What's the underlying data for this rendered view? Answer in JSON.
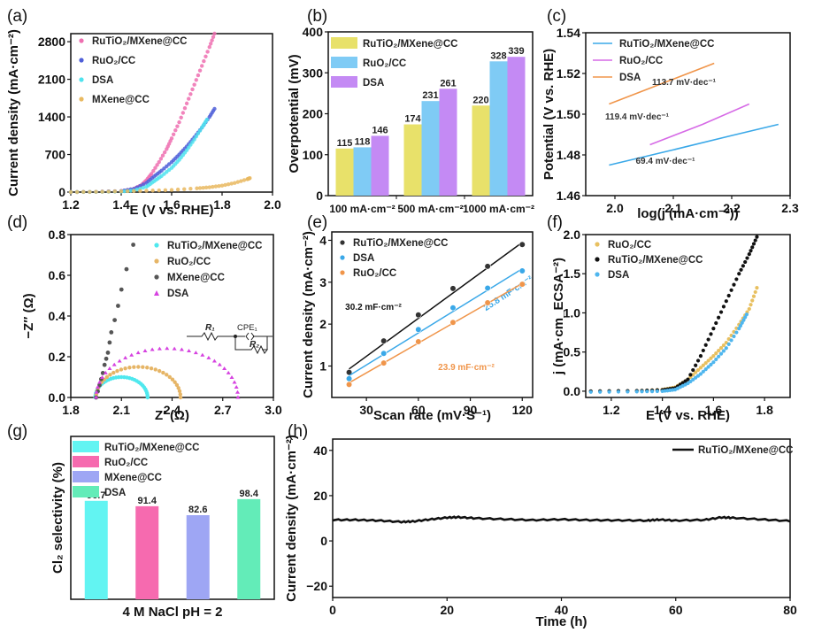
{
  "chart_data": [
    {
      "id": "a",
      "panel_label": "(a)",
      "type": "scatter",
      "xlabel": "E (V vs. RHE)",
      "ylabel": "Current density (mA·cm⁻²)",
      "xlim": [
        1.2,
        2.0
      ],
      "ylim": [
        0,
        2800
      ],
      "xticks": [
        "1.2",
        "1.4",
        "1.6",
        "1.8",
        "2.0"
      ],
      "yticks": [
        "0",
        "700",
        "1400",
        "2100",
        "2800"
      ],
      "legend": "top-left",
      "series": [
        {
          "name": "RuTiO₂/MXene@CC",
          "color": "#ee6fb0",
          "x": [
            1.2,
            1.3,
            1.4,
            1.45,
            1.48,
            1.5,
            1.52,
            1.55,
            1.58,
            1.6,
            1.63,
            1.66,
            1.69,
            1.72,
            1.75,
            1.77
          ],
          "y": [
            0,
            5,
            20,
            60,
            130,
            220,
            340,
            560,
            800,
            1000,
            1300,
            1650,
            2000,
            2350,
            2700,
            2950
          ]
        },
        {
          "name": "RuO₂/CC",
          "color": "#4f5fd8",
          "x": [
            1.2,
            1.3,
            1.4,
            1.45,
            1.5,
            1.53,
            1.56,
            1.6,
            1.63,
            1.66,
            1.69,
            1.72,
            1.75,
            1.77
          ],
          "y": [
            0,
            5,
            20,
            60,
            170,
            290,
            400,
            560,
            700,
            850,
            1020,
            1200,
            1400,
            1550
          ]
        },
        {
          "name": "DSA",
          "color": "#4fe3ee",
          "x": [
            1.2,
            1.3,
            1.4,
            1.45,
            1.5,
            1.53,
            1.56,
            1.6,
            1.63,
            1.66,
            1.69,
            1.72,
            1.74
          ],
          "y": [
            0,
            3,
            10,
            30,
            100,
            200,
            300,
            450,
            600,
            780,
            980,
            1200,
            1350
          ]
        },
        {
          "name": "MXene@CC",
          "color": "#e9b960",
          "x": [
            1.2,
            1.3,
            1.4,
            1.5,
            1.6,
            1.7,
            1.75,
            1.8,
            1.85,
            1.9,
            1.91
          ],
          "y": [
            0,
            5,
            15,
            25,
            40,
            70,
            90,
            120,
            170,
            240,
            260
          ]
        }
      ]
    },
    {
      "id": "b",
      "panel_label": "(b)",
      "type": "bar",
      "ylabel": "Overpotential (mV)",
      "ylim": [
        0,
        400
      ],
      "yticks": [
        "0",
        "100",
        "200",
        "300",
        "400"
      ],
      "categories": [
        "100 mA·cm⁻²",
        "500 mA·cm⁻²",
        "1000 mA·cm⁻²"
      ],
      "legend": "top-left",
      "series": [
        {
          "name": "RuTiO₂/MXene@CC",
          "color": "#e8e16a",
          "values": [
            115,
            174,
            220
          ]
        },
        {
          "name": "RuO₂/CC",
          "color": "#7fcbf5",
          "values": [
            118,
            231,
            328
          ]
        },
        {
          "name": "DSA",
          "color": "#c48af4",
          "values": [
            146,
            261,
            339
          ]
        }
      ]
    },
    {
      "id": "c",
      "panel_label": "(c)",
      "type": "line",
      "xlabel": "log(j (mA·cm⁻²))",
      "ylabel": "Potential (V vs. RHE)",
      "xlim": [
        1.95,
        2.3
      ],
      "ylim": [
        1.46,
        1.54
      ],
      "xticks": [
        "2.0",
        "2.1",
        "2.2",
        "2.3"
      ],
      "yticks": [
        "1.46",
        "1.48",
        "1.50",
        "1.52",
        "1.54"
      ],
      "legend": "top-left",
      "series": [
        {
          "name": "RuTiO₂/MXene@CC",
          "color": "#3aa8e8",
          "x": [
            1.99,
            2.1,
            2.2,
            2.28
          ],
          "y": [
            1.475,
            1.4825,
            1.4895,
            1.495
          ],
          "annotation": "69.4 mV·dec⁻¹"
        },
        {
          "name": "RuO₂/CC",
          "color": "#d66ae6",
          "x": [
            2.06,
            2.15,
            2.23
          ],
          "y": [
            1.485,
            1.495,
            1.505
          ],
          "annotation": "119.4 mV·dec⁻¹"
        },
        {
          "name": "DSA",
          "color": "#f0954a",
          "x": [
            1.99,
            2.08,
            2.17
          ],
          "y": [
            1.505,
            1.515,
            1.525
          ],
          "annotation": "113.7 mV·dec⁻¹"
        }
      ]
    },
    {
      "id": "d",
      "panel_label": "(d)",
      "type": "scatter",
      "xlabel": "Z′ (Ω)",
      "ylabel": "−Z″ (Ω)",
      "xlim": [
        1.8,
        3.0
      ],
      "ylim": [
        0,
        0.8
      ],
      "xticks": [
        "1.8",
        "2.1",
        "2.4",
        "2.7",
        "3.0"
      ],
      "yticks": [
        "0.0",
        "0.2",
        "0.4",
        "0.6",
        "0.8"
      ],
      "legend": "top-right",
      "inset_labels": {
        "r1": "R₁",
        "cpe": "CPE₁",
        "r2": "R₂"
      },
      "series": [
        {
          "name": "RuTiO₂/MXene@CC",
          "color": "#4fe8ee",
          "center": 2.1,
          "radius": 0.155,
          "depth": 0.1
        },
        {
          "name": "RuO₂/CC",
          "color": "#e6b566",
          "center": 2.2,
          "radius": 0.25,
          "depth": 0.15
        },
        {
          "name": "MXene@CC",
          "color": "#555555",
          "x": [
            1.95,
            1.96,
            1.97,
            1.98,
            1.99,
            2.0,
            2.01,
            2.02,
            2.03,
            2.04,
            2.06,
            2.08,
            2.1,
            2.13,
            2.17
          ],
          "y": [
            0,
            0.03,
            0.06,
            0.09,
            0.12,
            0.16,
            0.19,
            0.22,
            0.27,
            0.32,
            0.38,
            0.45,
            0.53,
            0.63,
            0.75
          ]
        },
        {
          "name": "DSA",
          "color": "#d642e0",
          "center": 2.37,
          "radius": 0.42,
          "depth": 0.24
        }
      ]
    },
    {
      "id": "e",
      "panel_label": "(e)",
      "type": "scatter",
      "xlabel": "Scan rate (mV·S⁻¹)",
      "ylabel": "Current density (mA·cm⁻²)",
      "xlim": [
        10,
        126
      ],
      "ylim": [
        0.25,
        4.2
      ],
      "xticks": [
        "30",
        "60",
        "90",
        "120"
      ],
      "yticks": [
        "1",
        "2",
        "3",
        "4"
      ],
      "legend": "top-left",
      "x": [
        20,
        40,
        60,
        80,
        100,
        120
      ],
      "series": [
        {
          "name": "RuTiO₂/MXene@CC",
          "color": "#333333",
          "line_color": "#111111",
          "values": [
            0.85,
            1.6,
            2.22,
            2.85,
            3.38,
            3.9
          ],
          "fit": [
            0.93,
            3.95
          ],
          "annotation": "30.2 mF·cm⁻²"
        },
        {
          "name": "DSA",
          "color": "#3aa8e8",
          "line_color": "#3aa8e8",
          "values": [
            0.7,
            1.3,
            1.87,
            2.39,
            2.86,
            3.27
          ],
          "fit": [
            0.77,
            3.32
          ],
          "annotation": "25.8 mF·cm⁻²"
        },
        {
          "name": "RuO₂/CC",
          "color": "#f0954a",
          "line_color": "#f0954a",
          "values": [
            0.56,
            1.07,
            1.58,
            2.04,
            2.51,
            2.95
          ],
          "fit": [
            0.6,
            2.97
          ],
          "annotation": "23.9 mF·cm⁻²"
        }
      ]
    },
    {
      "id": "f",
      "panel_label": "(f)",
      "type": "scatter",
      "xlabel": "E (V vs. RHE)",
      "ylabel": "j (mA·cm_ECSA⁻²)",
      "xlim": [
        1.1,
        1.9
      ],
      "ylim": [
        -0.08,
        2.0
      ],
      "xticks": [
        "1.2",
        "1.4",
        "1.6",
        "1.8"
      ],
      "yticks": [
        "0.0",
        "0.5",
        "1.0",
        "1.5",
        "2.0"
      ],
      "legend": "top-left",
      "series": [
        {
          "name": "RuO₂/CC",
          "color": "#e8c060",
          "x": [
            1.12,
            1.3,
            1.4,
            1.45,
            1.5,
            1.55,
            1.6,
            1.65,
            1.7,
            1.74,
            1.77
          ],
          "y": [
            0,
            0.005,
            0.02,
            0.05,
            0.15,
            0.3,
            0.45,
            0.62,
            0.85,
            1.05,
            1.32
          ]
        },
        {
          "name": "RuTiO₂/MXene@CC",
          "color": "#111111",
          "x": [
            1.12,
            1.3,
            1.4,
            1.45,
            1.5,
            1.55,
            1.6,
            1.65,
            1.7,
            1.74,
            1.77
          ],
          "y": [
            0,
            0.005,
            0.015,
            0.04,
            0.15,
            0.45,
            0.8,
            1.15,
            1.5,
            1.75,
            1.97
          ]
        },
        {
          "name": "DSA",
          "color": "#4fb6ee",
          "x": [
            1.12,
            1.3,
            1.4,
            1.45,
            1.5,
            1.55,
            1.6,
            1.65,
            1.7,
            1.73
          ],
          "y": [
            -0.01,
            -0.005,
            0.0,
            0.02,
            0.1,
            0.22,
            0.37,
            0.55,
            0.8,
            0.98
          ]
        }
      ]
    },
    {
      "id": "g",
      "panel_label": "(g)",
      "type": "bar",
      "xlabel": "4 M NaCl pH = 2",
      "ylabel": "Cl₂ selectivity (%)",
      "ylim": [
        0,
        160
      ],
      "legend": "top-left",
      "categories": [
        "RuTiO₂/MXene@CC",
        "RuO₂/CC",
        "MXene@CC",
        "DSA"
      ],
      "colors": [
        "#62f4f2",
        "#f66aaf",
        "#9ea6f4",
        "#63ecb8"
      ],
      "values": [
        96.7,
        91.4,
        82.6,
        98.4
      ],
      "value_labels": [
        "96.7",
        "91.4",
        "82.6",
        "98.4"
      ]
    },
    {
      "id": "h",
      "panel_label": "(h)",
      "type": "line",
      "xlabel": "Time (h)",
      "ylabel": "Current density (mA·cm⁻²)",
      "xlim": [
        0,
        80
      ],
      "ylim": [
        -25,
        45
      ],
      "xticks": [
        "0",
        "20",
        "40",
        "60",
        "80"
      ],
      "yticks": [
        "−20",
        "0",
        "20",
        "40"
      ],
      "legend": "top-right",
      "series": [
        {
          "name": "RuTiO₂/MXene@CC",
          "color": "#111111",
          "x": [
            0,
            4,
            8,
            12,
            14,
            17,
            20,
            22,
            25,
            30,
            35,
            40,
            45,
            50,
            55,
            57,
            60,
            65,
            68,
            70,
            75,
            80
          ],
          "y": [
            9.3,
            9.3,
            9.0,
            8.4,
            8.6,
            9.5,
            10.3,
            10.5,
            10.0,
            9.6,
            9.2,
            9.5,
            9.2,
            9.1,
            9.0,
            9.4,
            9.0,
            9.3,
            10.4,
            10.2,
            9.5,
            8.8
          ]
        }
      ]
    }
  ]
}
